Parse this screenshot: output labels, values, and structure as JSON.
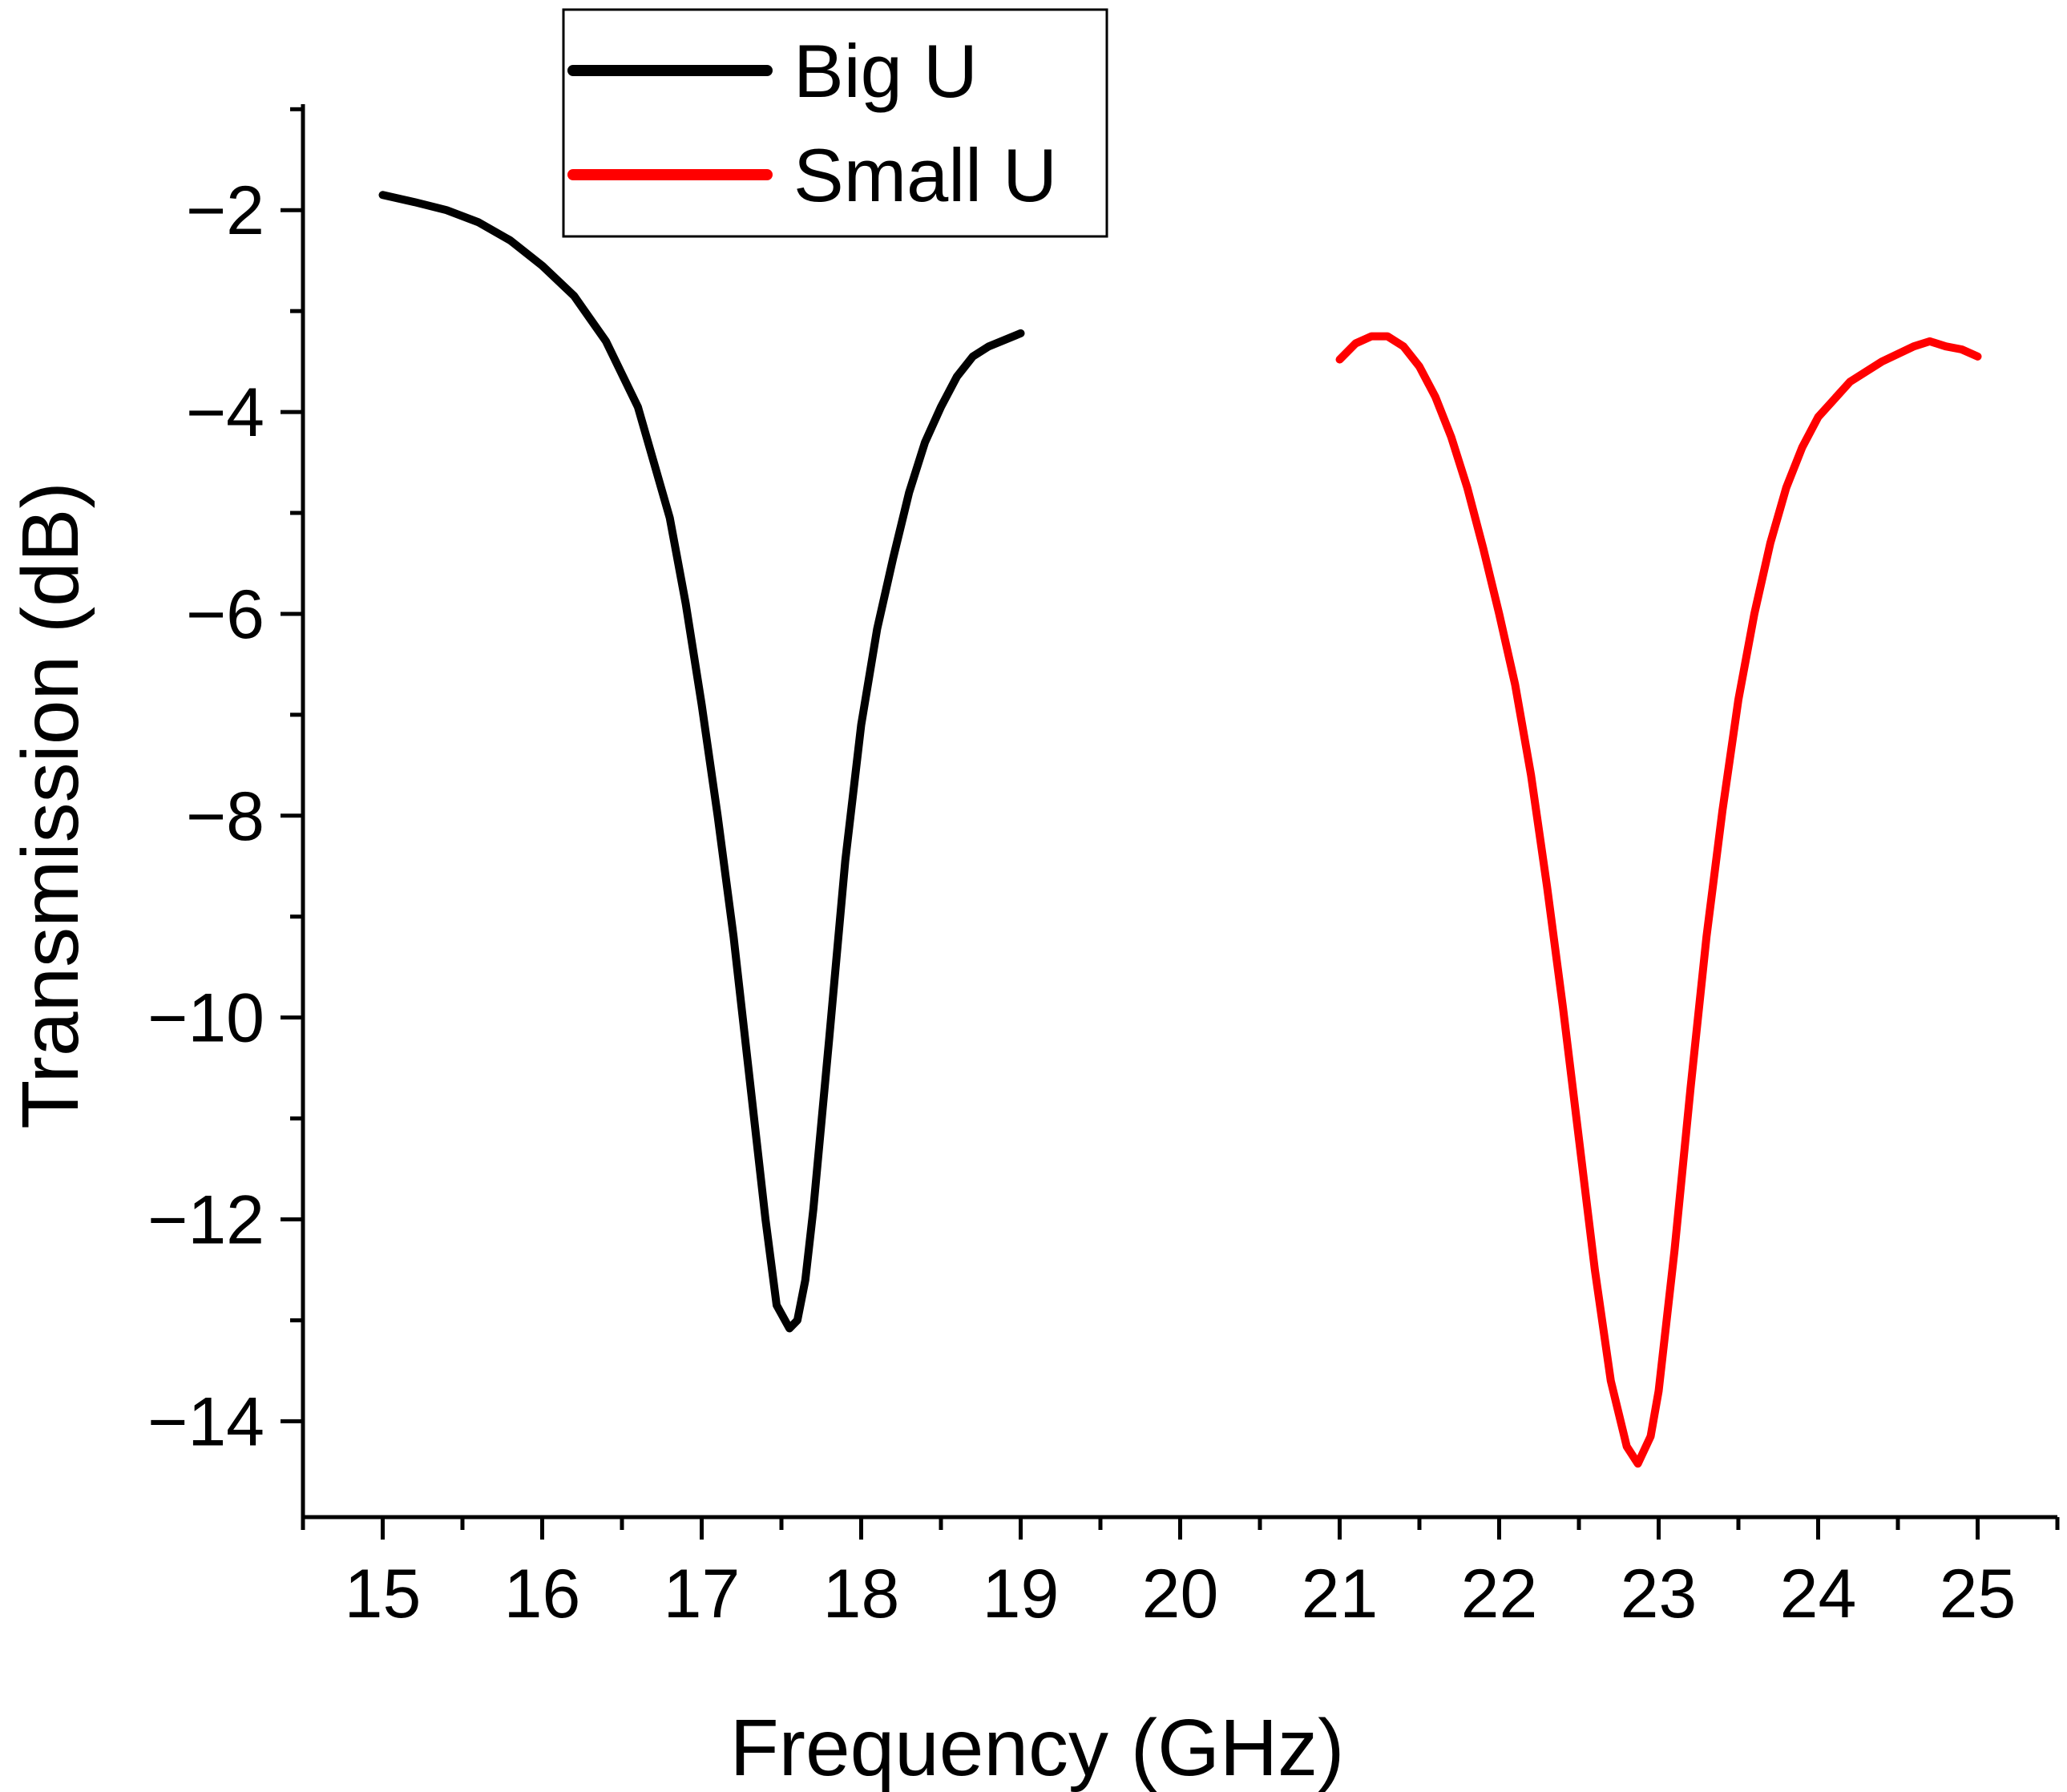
{
  "chart_data": {
    "type": "line",
    "xlabel": "Frequency (GHz)",
    "ylabel": "Transmission (dB)",
    "xlim": [
      14.5,
      25.5
    ],
    "ylim": [
      -14.95,
      -0.95
    ],
    "x_ticks": [
      15,
      16,
      17,
      18,
      19,
      20,
      21,
      22,
      23,
      24,
      25
    ],
    "y_ticks": [
      -2,
      -4,
      -6,
      -8,
      -10,
      -12,
      -14
    ],
    "x_tick_labels": [
      "15",
      "16",
      "17",
      "18",
      "19",
      "20",
      "21",
      "22",
      "23",
      "24",
      "25"
    ],
    "y_tick_labels": [
      "−2",
      "−4",
      "−6",
      "−8",
      "−10",
      "−12",
      "−14"
    ],
    "grid": false,
    "legend_position": "top-left",
    "series": [
      {
        "name": "Big U",
        "color": "#000000",
        "points": [
          [
            15.0,
            -1.85
          ],
          [
            15.2,
            -1.92
          ],
          [
            15.4,
            -2.0
          ],
          [
            15.6,
            -2.12
          ],
          [
            15.8,
            -2.3
          ],
          [
            16.0,
            -2.55
          ],
          [
            16.2,
            -2.85
          ],
          [
            16.4,
            -3.3
          ],
          [
            16.6,
            -3.95
          ],
          [
            16.7,
            -4.5
          ],
          [
            16.8,
            -5.05
          ],
          [
            16.9,
            -5.9
          ],
          [
            17.0,
            -6.9
          ],
          [
            17.1,
            -8.0
          ],
          [
            17.2,
            -9.2
          ],
          [
            17.3,
            -10.6
          ],
          [
            17.4,
            -12.0
          ],
          [
            17.47,
            -12.85
          ],
          [
            17.55,
            -13.08
          ],
          [
            17.6,
            -13.0
          ],
          [
            17.65,
            -12.6
          ],
          [
            17.7,
            -11.9
          ],
          [
            17.8,
            -10.2
          ],
          [
            17.9,
            -8.45
          ],
          [
            18.0,
            -7.1
          ],
          [
            18.1,
            -6.15
          ],
          [
            18.2,
            -5.45
          ],
          [
            18.3,
            -4.8
          ],
          [
            18.4,
            -4.3
          ],
          [
            18.5,
            -3.95
          ],
          [
            18.6,
            -3.65
          ],
          [
            18.7,
            -3.45
          ],
          [
            18.8,
            -3.35
          ],
          [
            19.0,
            -3.22
          ]
        ]
      },
      {
        "name": "Small U",
        "color": "#ff0000",
        "points": [
          [
            21.0,
            -3.48
          ],
          [
            21.1,
            -3.32
          ],
          [
            21.2,
            -3.25
          ],
          [
            21.3,
            -3.25
          ],
          [
            21.4,
            -3.35
          ],
          [
            21.5,
            -3.55
          ],
          [
            21.6,
            -3.85
          ],
          [
            21.7,
            -4.25
          ],
          [
            21.8,
            -4.75
          ],
          [
            21.9,
            -5.35
          ],
          [
            22.0,
            -6.0
          ],
          [
            22.1,
            -6.7
          ],
          [
            22.2,
            -7.6
          ],
          [
            22.3,
            -8.7
          ],
          [
            22.4,
            -9.9
          ],
          [
            22.5,
            -11.2
          ],
          [
            22.6,
            -12.5
          ],
          [
            22.7,
            -13.6
          ],
          [
            22.8,
            -14.25
          ],
          [
            22.87,
            -14.42
          ],
          [
            22.95,
            -14.15
          ],
          [
            23.0,
            -13.7
          ],
          [
            23.1,
            -12.3
          ],
          [
            23.2,
            -10.7
          ],
          [
            23.3,
            -9.2
          ],
          [
            23.4,
            -7.95
          ],
          [
            23.5,
            -6.85
          ],
          [
            23.6,
            -6.0
          ],
          [
            23.7,
            -5.3
          ],
          [
            23.8,
            -4.75
          ],
          [
            23.9,
            -4.35
          ],
          [
            24.0,
            -4.05
          ],
          [
            24.2,
            -3.7
          ],
          [
            24.4,
            -3.5
          ],
          [
            24.6,
            -3.35
          ],
          [
            24.7,
            -3.3
          ],
          [
            24.8,
            -3.35
          ],
          [
            24.9,
            -3.38
          ],
          [
            25.0,
            -3.45
          ]
        ]
      }
    ]
  }
}
